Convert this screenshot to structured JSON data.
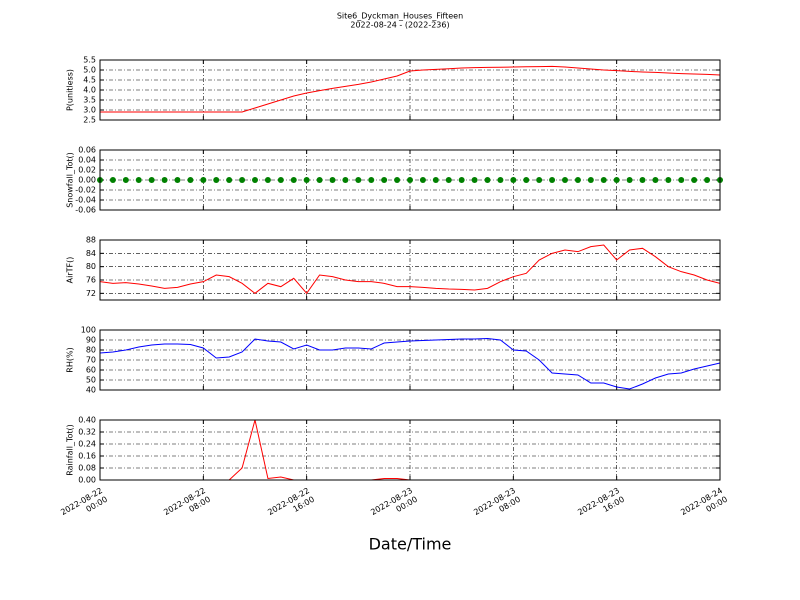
{
  "title": "Site6_Dyckman_Houses_Fifteen",
  "subtitle": "2022-08-24 - (2022-236)",
  "xlabel": "Date/Time",
  "chart_data": [
    {
      "type": "line",
      "ylabel": "P(unitless)",
      "color": "#ff0000",
      "grid": true,
      "xlim": [
        "2022-08-22 00:00",
        "2022-08-24 00:00"
      ],
      "xticks": [
        "2022-08-22 00:00",
        "2022-08-22 08:00",
        "2022-08-22 16:00",
        "2022-08-23 00:00",
        "2022-08-23 08:00",
        "2022-08-23 16:00",
        "2022-08-24 00:00"
      ],
      "ylim": [
        2.5,
        5.5
      ],
      "yticks": [
        2.5,
        {
          "value": 3,
          "label": "3.0"
        },
        3.5,
        {
          "value": 4,
          "label": "4.0"
        },
        4.5,
        {
          "value": 5,
          "label": "5.0"
        },
        5.5
      ],
      "x": [
        "2022-08-22 00:00",
        "2022-08-22 01:00",
        "2022-08-22 02:00",
        "2022-08-22 03:00",
        "2022-08-22 04:00",
        "2022-08-22 05:00",
        "2022-08-22 06:00",
        "2022-08-22 07:00",
        "2022-08-22 08:00",
        "2022-08-22 09:00",
        "2022-08-22 10:00",
        "2022-08-22 11:00",
        "2022-08-22 12:00",
        "2022-08-22 13:00",
        "2022-08-22 14:00",
        "2022-08-22 15:00",
        "2022-08-22 16:00",
        "2022-08-22 17:00",
        "2022-08-22 18:00",
        "2022-08-22 19:00",
        "2022-08-22 20:00",
        "2022-08-22 21:00",
        "2022-08-22 22:00",
        "2022-08-22 23:00",
        "2022-08-23 00:00",
        "2022-08-23 01:00",
        "2022-08-23 02:00",
        "2022-08-23 03:00",
        "2022-08-23 04:00",
        "2022-08-23 05:00",
        "2022-08-23 06:00",
        "2022-08-23 07:00",
        "2022-08-23 08:00",
        "2022-08-23 09:00",
        "2022-08-23 10:00",
        "2022-08-23 11:00",
        "2022-08-23 12:00",
        "2022-08-23 13:00",
        "2022-08-23 14:00",
        "2022-08-23 15:00",
        "2022-08-23 16:00",
        "2022-08-23 17:00",
        "2022-08-23 18:00",
        "2022-08-23 19:00",
        "2022-08-23 20:00",
        "2022-08-23 21:00",
        "2022-08-23 22:00",
        "2022-08-23 23:00",
        "2022-08-24 00:00"
      ],
      "values": [
        2.9,
        2.9,
        2.9,
        2.9,
        2.9,
        2.9,
        2.9,
        2.9,
        2.9,
        2.9,
        2.9,
        2.9,
        3.1,
        3.3,
        3.5,
        3.7,
        3.85,
        3.97,
        4.08,
        4.18,
        4.28,
        4.4,
        4.55,
        4.7,
        4.95,
        5.0,
        5.03,
        5.06,
        5.1,
        5.12,
        5.13,
        5.14,
        5.15,
        5.16,
        5.17,
        5.18,
        5.15,
        5.1,
        5.05,
        5.0,
        4.97,
        4.93,
        4.9,
        4.88,
        4.85,
        4.82,
        4.8,
        4.78,
        4.75
      ]
    },
    {
      "type": "scatter",
      "ylabel": "Snowfall_Tot()",
      "color": "#008000",
      "grid": true,
      "xlim": [
        "2022-08-22 00:00",
        "2022-08-24 00:00"
      ],
      "xticks": [
        "2022-08-22 00:00",
        "2022-08-22 08:00",
        "2022-08-22 16:00",
        "2022-08-23 00:00",
        "2022-08-23 08:00",
        "2022-08-23 16:00",
        "2022-08-24 00:00"
      ],
      "ylim": [
        -0.06,
        0.06
      ],
      "yticks": [
        -0.06,
        -0.04,
        -0.02,
        {
          "value": 0,
          "label": "0.00"
        },
        0.02,
        0.04,
        0.06
      ],
      "x": [
        "2022-08-22 00:00",
        "2022-08-22 01:00",
        "2022-08-22 02:00",
        "2022-08-22 03:00",
        "2022-08-22 04:00",
        "2022-08-22 05:00",
        "2022-08-22 06:00",
        "2022-08-22 07:00",
        "2022-08-22 08:00",
        "2022-08-22 09:00",
        "2022-08-22 10:00",
        "2022-08-22 11:00",
        "2022-08-22 12:00",
        "2022-08-22 13:00",
        "2022-08-22 14:00",
        "2022-08-22 15:00",
        "2022-08-22 16:00",
        "2022-08-22 17:00",
        "2022-08-22 18:00",
        "2022-08-22 19:00",
        "2022-08-22 20:00",
        "2022-08-22 21:00",
        "2022-08-22 22:00",
        "2022-08-22 23:00",
        "2022-08-23 00:00",
        "2022-08-23 01:00",
        "2022-08-23 02:00",
        "2022-08-23 03:00",
        "2022-08-23 04:00",
        "2022-08-23 05:00",
        "2022-08-23 06:00",
        "2022-08-23 07:00",
        "2022-08-23 08:00",
        "2022-08-23 09:00",
        "2022-08-23 10:00",
        "2022-08-23 11:00",
        "2022-08-23 12:00",
        "2022-08-23 13:00",
        "2022-08-23 14:00",
        "2022-08-23 15:00",
        "2022-08-23 16:00",
        "2022-08-23 17:00",
        "2022-08-23 18:00",
        "2022-08-23 19:00",
        "2022-08-23 20:00",
        "2022-08-23 21:00",
        "2022-08-23 22:00",
        "2022-08-23 23:00",
        "2022-08-24 00:00"
      ],
      "values": [
        0,
        0,
        0,
        0,
        0,
        0,
        0,
        0,
        0,
        0,
        0,
        0,
        0,
        0,
        0,
        0,
        0,
        0,
        0,
        0,
        0,
        0,
        0,
        0,
        0,
        0,
        0,
        0,
        0,
        0,
        0,
        0,
        0,
        0,
        0,
        0,
        0,
        0,
        0,
        0,
        0,
        0,
        0,
        0,
        0,
        0,
        0,
        0,
        0
      ]
    },
    {
      "type": "line",
      "ylabel": "AirTF()",
      "color": "#ff0000",
      "grid": true,
      "xlim": [
        "2022-08-22 00:00",
        "2022-08-24 00:00"
      ],
      "xticks": [
        "2022-08-22 00:00",
        "2022-08-22 08:00",
        "2022-08-22 16:00",
        "2022-08-23 00:00",
        "2022-08-23 08:00",
        "2022-08-23 16:00",
        "2022-08-24 00:00"
      ],
      "ylim": [
        70,
        88
      ],
      "yticks": [
        72,
        76,
        80,
        84,
        88
      ],
      "x": [
        "2022-08-22 00:00",
        "2022-08-22 01:00",
        "2022-08-22 02:00",
        "2022-08-22 03:00",
        "2022-08-22 04:00",
        "2022-08-22 05:00",
        "2022-08-22 06:00",
        "2022-08-22 07:00",
        "2022-08-22 08:00",
        "2022-08-22 09:00",
        "2022-08-22 10:00",
        "2022-08-22 11:00",
        "2022-08-22 12:00",
        "2022-08-22 13:00",
        "2022-08-22 14:00",
        "2022-08-22 15:00",
        "2022-08-22 16:00",
        "2022-08-22 17:00",
        "2022-08-22 18:00",
        "2022-08-22 19:00",
        "2022-08-22 20:00",
        "2022-08-22 21:00",
        "2022-08-22 22:00",
        "2022-08-22 23:00",
        "2022-08-23 00:00",
        "2022-08-23 01:00",
        "2022-08-23 02:00",
        "2022-08-23 03:00",
        "2022-08-23 04:00",
        "2022-08-23 05:00",
        "2022-08-23 06:00",
        "2022-08-23 07:00",
        "2022-08-23 08:00",
        "2022-08-23 09:00",
        "2022-08-23 10:00",
        "2022-08-23 11:00",
        "2022-08-23 12:00",
        "2022-08-23 13:00",
        "2022-08-23 14:00",
        "2022-08-23 15:00",
        "2022-08-23 16:00",
        "2022-08-23 17:00",
        "2022-08-23 18:00",
        "2022-08-23 19:00",
        "2022-08-23 20:00",
        "2022-08-23 21:00",
        "2022-08-23 22:00",
        "2022-08-23 23:00",
        "2022-08-24 00:00"
      ],
      "values": [
        75.5,
        75,
        75.2,
        74.8,
        74.2,
        73.5,
        73.8,
        74.8,
        75.5,
        77.5,
        77,
        75,
        72,
        75,
        74,
        76.5,
        72,
        77.5,
        77,
        76,
        75.5,
        75.5,
        75,
        74,
        74,
        73.8,
        73.5,
        73.3,
        73.2,
        73,
        73.5,
        75.5,
        77,
        78,
        82,
        84,
        85,
        84.5,
        86,
        86.5,
        82,
        85,
        85.5,
        83,
        80,
        78.5,
        77.5,
        76,
        75
      ]
    },
    {
      "type": "line",
      "ylabel": "RH(%)",
      "color": "#0000ff",
      "grid": true,
      "xlim": [
        "2022-08-22 00:00",
        "2022-08-24 00:00"
      ],
      "xticks": [
        "2022-08-22 00:00",
        "2022-08-22 08:00",
        "2022-08-22 16:00",
        "2022-08-23 00:00",
        "2022-08-23 08:00",
        "2022-08-23 16:00",
        "2022-08-24 00:00"
      ],
      "ylim": [
        40,
        100
      ],
      "yticks": [
        40,
        50,
        60,
        70,
        80,
        90,
        100
      ],
      "x": [
        "2022-08-22 00:00",
        "2022-08-22 01:00",
        "2022-08-22 02:00",
        "2022-08-22 03:00",
        "2022-08-22 04:00",
        "2022-08-22 05:00",
        "2022-08-22 06:00",
        "2022-08-22 07:00",
        "2022-08-22 08:00",
        "2022-08-22 09:00",
        "2022-08-22 10:00",
        "2022-08-22 11:00",
        "2022-08-22 12:00",
        "2022-08-22 13:00",
        "2022-08-22 14:00",
        "2022-08-22 15:00",
        "2022-08-22 16:00",
        "2022-08-22 17:00",
        "2022-08-22 18:00",
        "2022-08-22 19:00",
        "2022-08-22 20:00",
        "2022-08-22 21:00",
        "2022-08-22 22:00",
        "2022-08-22 23:00",
        "2022-08-23 00:00",
        "2022-08-23 01:00",
        "2022-08-23 02:00",
        "2022-08-23 03:00",
        "2022-08-23 04:00",
        "2022-08-23 05:00",
        "2022-08-23 06:00",
        "2022-08-23 07:00",
        "2022-08-23 08:00",
        "2022-08-23 09:00",
        "2022-08-23 10:00",
        "2022-08-23 11:00",
        "2022-08-23 12:00",
        "2022-08-23 13:00",
        "2022-08-23 14:00",
        "2022-08-23 15:00",
        "2022-08-23 16:00",
        "2022-08-23 17:00",
        "2022-08-23 18:00",
        "2022-08-23 19:00",
        "2022-08-23 20:00",
        "2022-08-23 21:00",
        "2022-08-23 22:00",
        "2022-08-23 23:00",
        "2022-08-24 00:00"
      ],
      "values": [
        77,
        78,
        80,
        83,
        85,
        86,
        86,
        85.5,
        82,
        72,
        73,
        78,
        91,
        89,
        88,
        81,
        85,
        80,
        80,
        82,
        82,
        81,
        87,
        88,
        89,
        89.5,
        90,
        90.5,
        91,
        91,
        91.5,
        90,
        80,
        79,
        70,
        57,
        56,
        55,
        47,
        47,
        43,
        41,
        46,
        52,
        56,
        57,
        61,
        64,
        67
      ]
    },
    {
      "type": "line",
      "ylabel": "Rainfall_Tot()",
      "color": "#ff0000",
      "grid": true,
      "xlim": [
        "2022-08-22 00:00",
        "2022-08-24 00:00"
      ],
      "xticks": [
        {
          "value": "2022-08-22 00:00",
          "label": "2022-08-22\n00:00"
        },
        {
          "value": "2022-08-22 08:00",
          "label": "2022-08-22\n08:00"
        },
        {
          "value": "2022-08-22 16:00",
          "label": "2022-08-22\n16:00"
        },
        {
          "value": "2022-08-23 00:00",
          "label": "2022-08-23\n00:00"
        },
        {
          "value": "2022-08-23 08:00",
          "label": "2022-08-23\n08:00"
        },
        {
          "value": "2022-08-23 16:00",
          "label": "2022-08-23\n16:00"
        },
        {
          "value": "2022-08-24 00:00",
          "label": "2022-08-24\n00:00"
        }
      ],
      "ylim": [
        0,
        0.4
      ],
      "yticks": [
        {
          "value": 0,
          "label": "0.00"
        },
        0.08,
        0.16,
        0.24,
        0.32,
        {
          "value": 0.4,
          "label": "0.40"
        }
      ],
      "x": [
        "2022-08-22 00:00",
        "2022-08-22 01:00",
        "2022-08-22 02:00",
        "2022-08-22 03:00",
        "2022-08-22 04:00",
        "2022-08-22 05:00",
        "2022-08-22 06:00",
        "2022-08-22 07:00",
        "2022-08-22 08:00",
        "2022-08-22 09:00",
        "2022-08-22 10:00",
        "2022-08-22 11:00",
        "2022-08-22 12:00",
        "2022-08-22 13:00",
        "2022-08-22 14:00",
        "2022-08-22 15:00",
        "2022-08-22 16:00",
        "2022-08-22 17:00",
        "2022-08-22 18:00",
        "2022-08-22 19:00",
        "2022-08-22 20:00",
        "2022-08-22 21:00",
        "2022-08-22 22:00",
        "2022-08-22 23:00",
        "2022-08-23 00:00",
        "2022-08-23 01:00",
        "2022-08-23 02:00",
        "2022-08-23 03:00",
        "2022-08-23 04:00",
        "2022-08-23 05:00",
        "2022-08-23 06:00",
        "2022-08-23 07:00",
        "2022-08-23 08:00",
        "2022-08-23 09:00",
        "2022-08-23 10:00",
        "2022-08-23 11:00",
        "2022-08-23 12:00",
        "2022-08-23 13:00",
        "2022-08-23 14:00",
        "2022-08-23 15:00",
        "2022-08-23 16:00",
        "2022-08-23 17:00",
        "2022-08-23 18:00",
        "2022-08-23 19:00",
        "2022-08-23 20:00",
        "2022-08-23 21:00",
        "2022-08-23 22:00",
        "2022-08-23 23:00",
        "2022-08-24 00:00"
      ],
      "values": [
        0,
        0,
        0,
        0,
        0,
        0,
        0,
        0,
        0,
        0,
        0,
        0.08,
        0.4,
        0.01,
        0.02,
        0,
        0,
        0,
        0,
        0,
        0,
        0,
        0.01,
        0.01,
        0,
        0,
        0,
        0,
        0,
        0,
        0,
        0,
        0,
        0,
        0,
        0,
        0,
        0,
        0,
        0,
        0,
        0,
        0,
        0,
        0,
        0,
        0,
        0,
        0
      ]
    }
  ]
}
